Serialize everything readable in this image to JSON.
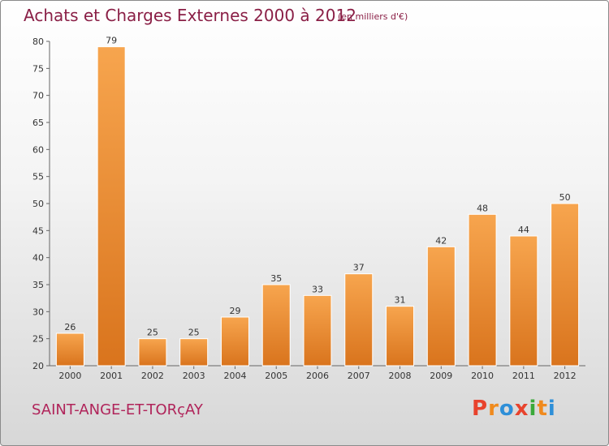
{
  "header": {
    "title": "Achats et Charges Externes 2000 à 2012",
    "unit": "(en milliers d'€)"
  },
  "footer": {
    "commune": "SAINT-ANGE-ET-TORçAY",
    "brand": "Proxiti"
  },
  "colors": {
    "title": "#8a1f46",
    "bar_light": "#f7a54e",
    "bar_dark": "#d9741d",
    "brand_letters": [
      "#e8432d",
      "#f08a1d",
      "#2e8fd8",
      "#e8432d",
      "#3aa93a",
      "#f08a1d",
      "#2e8fd8"
    ]
  },
  "chart_data": {
    "type": "bar",
    "categories": [
      "2000",
      "2001",
      "2002",
      "2003",
      "2004",
      "2005",
      "2006",
      "2007",
      "2008",
      "2009",
      "2010",
      "2011",
      "2012"
    ],
    "values": [
      26,
      79,
      25,
      25,
      29,
      35,
      33,
      37,
      31,
      42,
      48,
      44,
      50
    ],
    "title": "Achats et Charges Externes 2000 à 2012",
    "subtitle": "(en milliers d'€)",
    "ylim": [
      20,
      80
    ],
    "yticks": [
      20,
      25,
      30,
      35,
      40,
      45,
      50,
      55,
      60,
      65,
      70,
      75,
      80
    ],
    "grid": false,
    "legend": "none"
  }
}
